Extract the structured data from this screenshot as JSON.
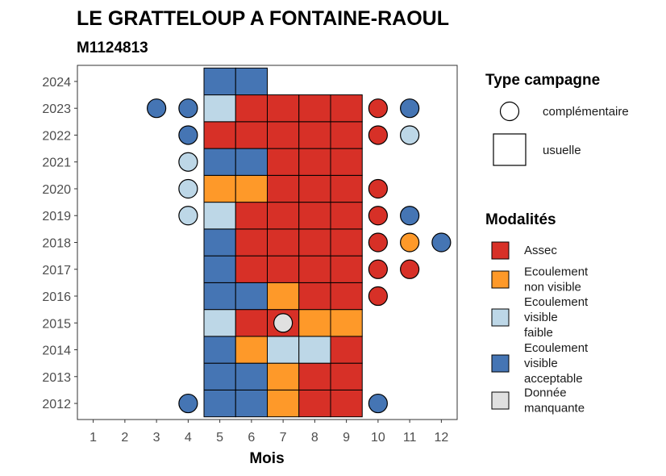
{
  "chart_data": {
    "type": "heatmap",
    "title": "LE GRATTELOUP A FONTAINE-RAOUL",
    "subtitle": "M1124813",
    "xlabel": "Mois",
    "ylabel": "",
    "x_ticks": [
      "1",
      "2",
      "3",
      "4",
      "5",
      "6",
      "7",
      "8",
      "9",
      "10",
      "11",
      "12"
    ],
    "y_ticks": [
      "2012",
      "2013",
      "2014",
      "2015",
      "2016",
      "2017",
      "2018",
      "2019",
      "2020",
      "2021",
      "2022",
      "2023",
      "2024"
    ],
    "xlim": [
      0.5,
      12.5
    ],
    "ylim": [
      2011.4,
      2024.6
    ],
    "grid": false,
    "colors": {
      "Assec": "#d73027",
      "Ecoulement non visible": "#fe9929",
      "Ecoulement visible faible": "#bdd7e7",
      "Ecoulement visible acceptable": "#4575b4",
      "Donnée manquante": "#e0e0e0"
    },
    "usuelle": [
      {
        "year": 2012,
        "months": {
          "5": "Ecoulement visible acceptable",
          "6": "Ecoulement visible acceptable",
          "7": "Ecoulement non visible",
          "8": "Assec",
          "9": "Assec"
        }
      },
      {
        "year": 2013,
        "months": {
          "5": "Ecoulement visible acceptable",
          "6": "Ecoulement visible acceptable",
          "7": "Ecoulement non visible",
          "8": "Assec",
          "9": "Assec"
        }
      },
      {
        "year": 2014,
        "months": {
          "5": "Ecoulement visible acceptable",
          "6": "Ecoulement non visible",
          "7": "Ecoulement visible faible",
          "8": "Ecoulement visible faible",
          "9": "Assec"
        }
      },
      {
        "year": 2015,
        "months": {
          "5": "Ecoulement visible faible",
          "6": "Assec",
          "7": "Assec",
          "8": "Ecoulement non visible",
          "9": "Ecoulement non visible"
        }
      },
      {
        "year": 2016,
        "months": {
          "5": "Ecoulement visible acceptable",
          "6": "Ecoulement visible acceptable",
          "7": "Ecoulement non visible",
          "8": "Assec",
          "9": "Assec"
        }
      },
      {
        "year": 2017,
        "months": {
          "5": "Ecoulement visible acceptable",
          "6": "Assec",
          "7": "Assec",
          "8": "Assec",
          "9": "Assec"
        }
      },
      {
        "year": 2018,
        "months": {
          "5": "Ecoulement visible acceptable",
          "6": "Assec",
          "7": "Assec",
          "8": "Assec",
          "9": "Assec"
        }
      },
      {
        "year": 2019,
        "months": {
          "5": "Ecoulement visible faible",
          "6": "Assec",
          "7": "Assec",
          "8": "Assec",
          "9": "Assec"
        }
      },
      {
        "year": 2020,
        "months": {
          "5": "Ecoulement non visible",
          "6": "Ecoulement non visible",
          "7": "Assec",
          "8": "Assec",
          "9": "Assec"
        }
      },
      {
        "year": 2021,
        "months": {
          "5": "Ecoulement visible acceptable",
          "6": "Ecoulement visible acceptable",
          "7": "Assec",
          "8": "Assec",
          "9": "Assec"
        }
      },
      {
        "year": 2022,
        "months": {
          "5": "Assec",
          "6": "Assec",
          "7": "Assec",
          "8": "Assec",
          "9": "Assec"
        }
      },
      {
        "year": 2023,
        "months": {
          "5": "Ecoulement visible faible",
          "6": "Assec",
          "7": "Assec",
          "8": "Assec",
          "9": "Assec"
        }
      },
      {
        "year": 2024,
        "months": {
          "5": "Ecoulement visible acceptable",
          "6": "Ecoulement visible acceptable"
        }
      }
    ],
    "complementaire": [
      {
        "year": 2012,
        "month": 4,
        "value": "Ecoulement visible acceptable"
      },
      {
        "year": 2012,
        "month": 10,
        "value": "Ecoulement visible acceptable"
      },
      {
        "year": 2015,
        "month": 7,
        "value": "Donnée manquante"
      },
      {
        "year": 2016,
        "month": 10,
        "value": "Assec"
      },
      {
        "year": 2017,
        "month": 10,
        "value": "Assec"
      },
      {
        "year": 2017,
        "month": 11,
        "value": "Assec"
      },
      {
        "year": 2018,
        "month": 10,
        "value": "Assec"
      },
      {
        "year": 2018,
        "month": 11,
        "value": "Ecoulement non visible"
      },
      {
        "year": 2018,
        "month": 12,
        "value": "Ecoulement visible acceptable"
      },
      {
        "year": 2019,
        "month": 4,
        "value": "Ecoulement visible faible"
      },
      {
        "year": 2019,
        "month": 10,
        "value": "Assec"
      },
      {
        "year": 2019,
        "month": 11,
        "value": "Ecoulement visible acceptable"
      },
      {
        "year": 2020,
        "month": 4,
        "value": "Ecoulement visible faible"
      },
      {
        "year": 2020,
        "month": 10,
        "value": "Assec"
      },
      {
        "year": 2021,
        "month": 4,
        "value": "Ecoulement visible faible"
      },
      {
        "year": 2022,
        "month": 4,
        "value": "Ecoulement visible acceptable"
      },
      {
        "year": 2022,
        "month": 10,
        "value": "Assec"
      },
      {
        "year": 2022,
        "month": 11,
        "value": "Ecoulement visible faible"
      },
      {
        "year": 2023,
        "month": 3,
        "value": "Ecoulement visible acceptable"
      },
      {
        "year": 2023,
        "month": 4,
        "value": "Ecoulement visible acceptable"
      },
      {
        "year": 2023,
        "month": 10,
        "value": "Assec"
      },
      {
        "year": 2023,
        "month": 11,
        "value": "Ecoulement visible acceptable"
      }
    ],
    "legend": {
      "type_title": "Type campagne",
      "type_items": [
        "complémentaire",
        "usuelle"
      ],
      "mod_title": "Modalités",
      "mod_items": [
        {
          "key": "Assec",
          "lines": [
            "Assec"
          ]
        },
        {
          "key": "Ecoulement non visible",
          "lines": [
            "Ecoulement",
            "non visible"
          ]
        },
        {
          "key": "Ecoulement visible faible",
          "lines": [
            "Ecoulement",
            "visible",
            "faible"
          ]
        },
        {
          "key": "Ecoulement visible acceptable",
          "lines": [
            "Ecoulement",
            "visible",
            "acceptable"
          ]
        },
        {
          "key": "Donnée manquante",
          "lines": [
            "Donnée",
            "manquante"
          ]
        }
      ],
      "placement": "right"
    }
  }
}
